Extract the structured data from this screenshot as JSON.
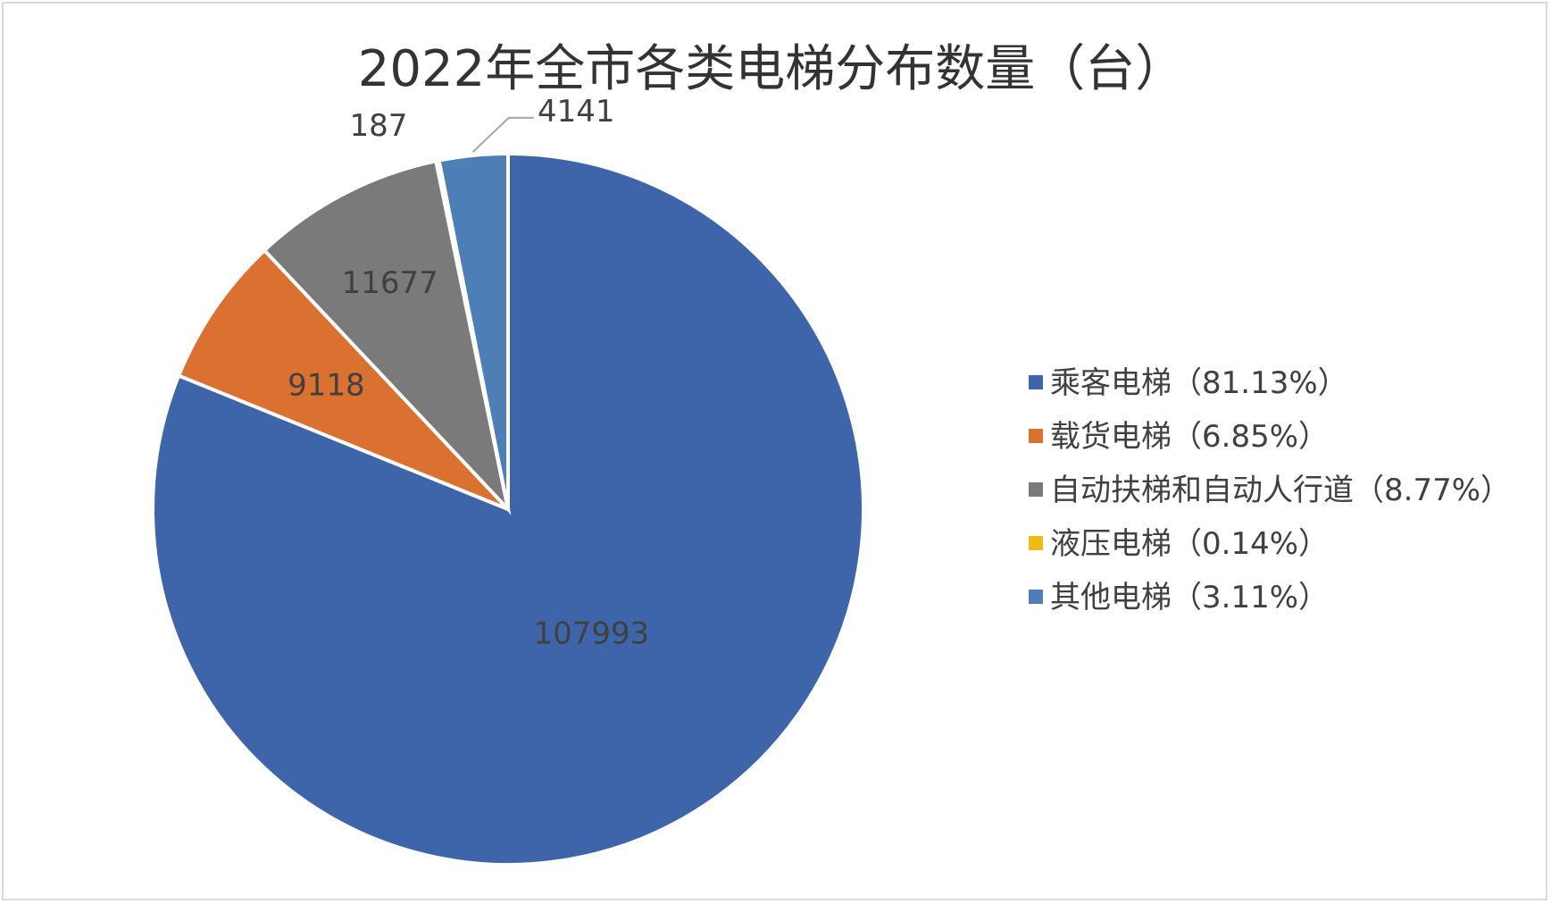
{
  "chart_data": {
    "type": "pie",
    "title": "2022年全市各类电梯分布数量（台）",
    "categories": [
      "乘客电梯",
      "载货电梯",
      "自动扶梯和自动人行道",
      "液压电梯",
      "其他电梯"
    ],
    "values": [
      107993,
      9118,
      11677,
      187,
      4141
    ],
    "percent_labels": [
      "81.13%",
      "6.85%",
      "8.77%",
      "0.14%",
      "3.11%"
    ],
    "legend_labels": [
      "乘客电梯（81.13%）",
      "载货电梯（6.85%）",
      "自动扶梯和自动人行道（8.77%）",
      "液压电梯（0.14%）",
      "其他电梯（3.11%）"
    ],
    "data_labels": [
      "107993",
      "9118",
      "11677",
      "187",
      "4141"
    ],
    "colors": [
      "#3E65A9",
      "#DB7130",
      "#7A7A7A",
      "#F2BA17",
      "#4D7EB5"
    ],
    "start_angle_deg": 0,
    "direction": "clockwise",
    "legend_position": "right"
  }
}
